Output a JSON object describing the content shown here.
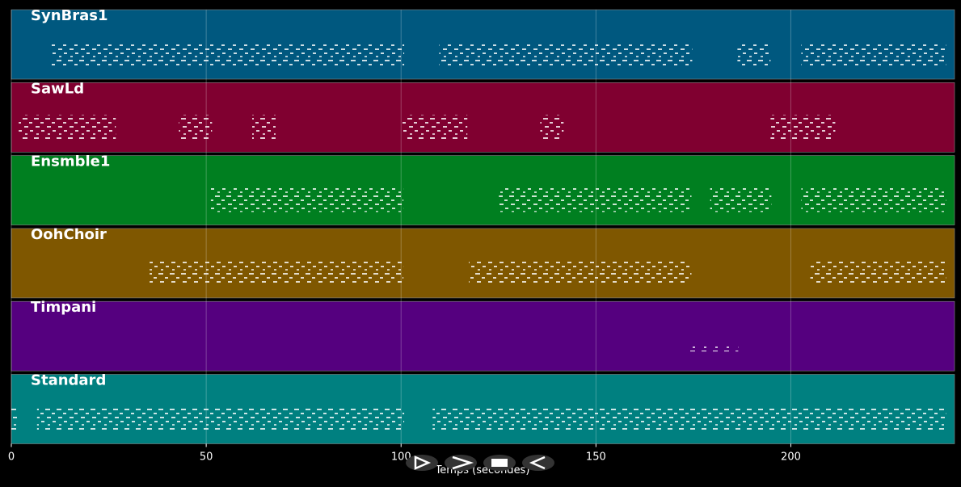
{
  "chart_data": {
    "type": "pianoroll",
    "xlabel": "Temps (secondes)",
    "xlim": [
      0,
      242
    ],
    "xticks": [
      0,
      50,
      100,
      150,
      200
    ],
    "grid": true,
    "tracks": [
      {
        "name": "SynBras1",
        "color": "#00587f",
        "segments": [
          [
            10.2,
            100.8
          ],
          [
            109.8,
            174.7
          ],
          [
            186.3,
            194.8
          ],
          [
            202.7,
            239.8
          ]
        ]
      },
      {
        "name": "SawLd",
        "color": "#800030",
        "segments": [
          [
            1.9,
            26.8
          ],
          [
            43,
            51.5
          ],
          [
            61.8,
            67.8
          ],
          [
            100.2,
            117
          ],
          [
            135.7,
            141.7
          ],
          [
            194.8,
            211.4
          ]
        ]
      },
      {
        "name": "Ensmble1",
        "color": "#007f20",
        "segments": [
          [
            51.2,
            100.6
          ],
          [
            125.1,
            174.5
          ],
          [
            179.3,
            195
          ],
          [
            202.7,
            239.8
          ]
        ]
      },
      {
        "name": "OohChoir",
        "color": "#7f5700",
        "segments": [
          [
            35.5,
            100.6
          ],
          [
            117.4,
            174.5
          ],
          [
            205,
            239.8
          ]
        ]
      },
      {
        "name": "Timpani",
        "color": "#55007f",
        "segments": [
          [
            174,
            186.5
          ]
        ]
      },
      {
        "name": "Standard",
        "color": "#008080",
        "segments": [
          [
            0,
            1.5
          ],
          [
            6.6,
            100.8
          ],
          [
            108.1,
            239.8
          ]
        ]
      }
    ]
  }
}
